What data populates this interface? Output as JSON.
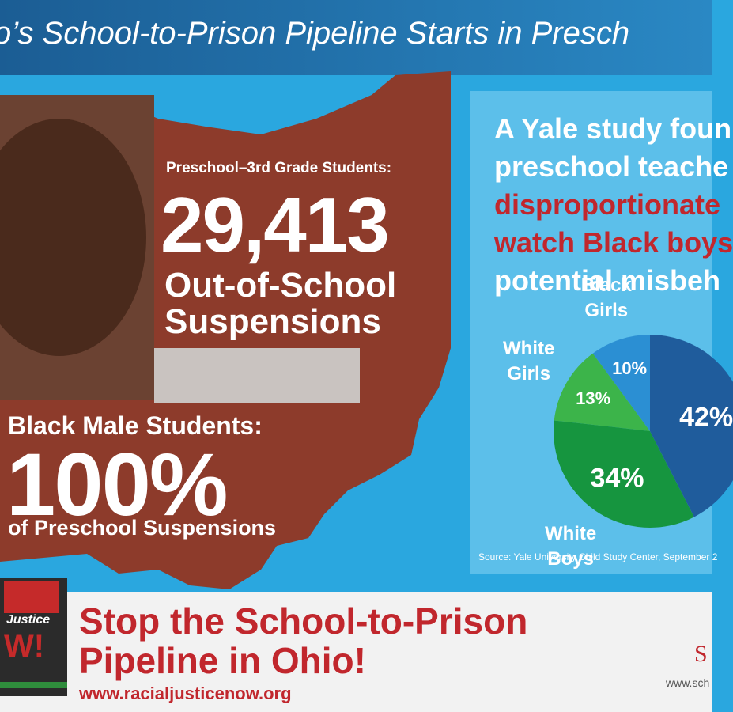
{
  "header": {
    "title": "o’s School-to-Prison Pipeline Starts in Presch"
  },
  "stats": [
    {
      "label": "Preschool–3rd Grade Students:",
      "value": "29,413",
      "caption": [
        "Out-of-School",
        "Suspensions"
      ]
    },
    {
      "label": "Black Male Students:",
      "value": "100%",
      "caption": [
        "of Preschool Suspensions"
      ]
    }
  ],
  "study": {
    "lines": [
      "A Yale study foun",
      "preschool teache"
    ],
    "highlight": [
      "disproportionate",
      "watch Black boys"
    ],
    "tail": [
      "potential misbeh"
    ],
    "source": "Source: Yale University Child Study Center, September 2"
  },
  "chart_data": {
    "type": "pie",
    "categories": [
      "Black Girls",
      "White Girls",
      "White Boys",
      null
    ],
    "values": [
      10,
      13,
      34,
      42
    ],
    "value_labels": [
      "10%",
      "13%",
      "34%",
      "42%"
    ],
    "colors": [
      "#2b8fd3",
      "#3cb44a",
      "#16953f",
      "#1f5c9c"
    ]
  },
  "footer": {
    "lines": [
      "Stop the School-to-Prison",
      "Pipeline in Ohio!"
    ],
    "url": "www.racialjusticenow.org",
    "logo": [
      "Justice",
      "W!"
    ],
    "partner": "S",
    "partner_url": "www.sch"
  }
}
